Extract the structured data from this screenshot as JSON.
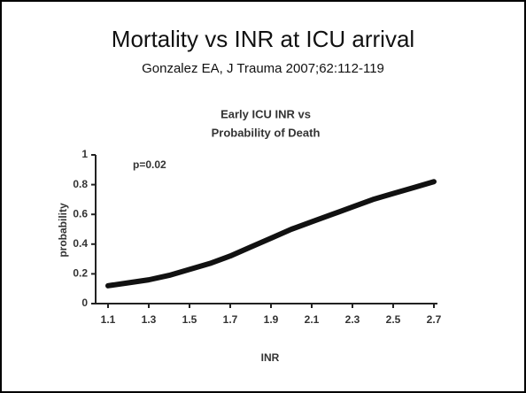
{
  "slide": {
    "title": "Mortality vs INR at ICU arrival",
    "subtitle": "Gonzalez EA, J Trauma 2007;62:112-119"
  },
  "chart_data": {
    "type": "line",
    "title": [
      "Early ICU INR vs",
      "Probability of Death"
    ],
    "annotation": "p=0.02",
    "x_label": "INR",
    "y_label": "probability",
    "x": [
      1.1,
      1.2,
      1.3,
      1.4,
      1.5,
      1.6,
      1.7,
      1.8,
      1.9,
      2.0,
      2.1,
      2.2,
      2.3,
      2.4,
      2.5,
      2.6,
      2.7
    ],
    "series": [
      {
        "color": "#111111",
        "values": [
          0.12,
          0.14,
          0.16,
          0.19,
          0.23,
          0.27,
          0.32,
          0.38,
          0.44,
          0.5,
          0.55,
          0.6,
          0.65,
          0.7,
          0.74,
          0.78,
          0.82
        ]
      }
    ],
    "xlim": [
      1.1,
      2.7
    ],
    "xticks": [
      1.1,
      1.3,
      1.5,
      1.7,
      1.9,
      2.1,
      2.3,
      2.5,
      2.7
    ],
    "ylim": [
      0,
      1
    ],
    "yticks": [
      0,
      0.2,
      0.4,
      0.6,
      0.8,
      1
    ],
    "grid": false
  }
}
